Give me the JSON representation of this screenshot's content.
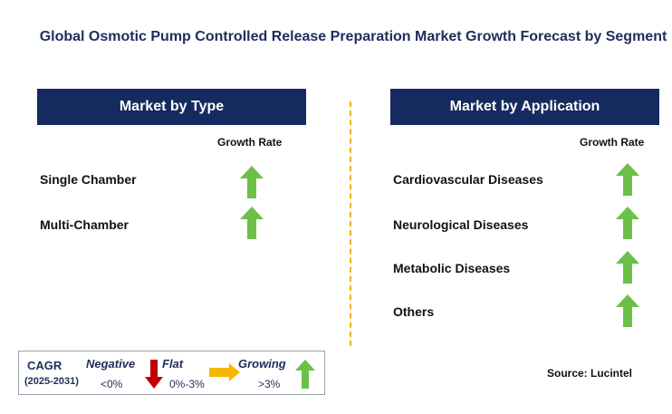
{
  "title": "Global Osmotic Pump Controlled Release Preparation Market Growth Forecast by Segment",
  "type_panel": {
    "header": "Market by Type",
    "growth_label": "Growth Rate",
    "items": [
      {
        "label": "Single Chamber",
        "trend": "growing"
      },
      {
        "label": "Multi-Chamber",
        "trend": "growing"
      }
    ]
  },
  "application_panel": {
    "header": "Market by Application",
    "growth_label": "Growth Rate",
    "items": [
      {
        "label": "Cardiovascular Diseases",
        "trend": "growing"
      },
      {
        "label": "Neurological Diseases",
        "trend": "growing"
      },
      {
        "label": "Metabolic Diseases",
        "trend": "growing"
      },
      {
        "label": "Others",
        "trend": "growing"
      }
    ]
  },
  "legend": {
    "cagr_label": "CAGR",
    "period": "(2025-2031)",
    "negative_label": "Negative",
    "negative_value": "<0%",
    "flat_label": "Flat",
    "flat_value": "0%-3%",
    "growing_label": "Growing",
    "growing_value": ">3%"
  },
  "source": "Source: Lucintel",
  "colors": {
    "header_bg": "#152a5e",
    "growing": "#6cc04a",
    "negative": "#c00000",
    "flat": "#f5b800",
    "divider": "#f0b400"
  }
}
